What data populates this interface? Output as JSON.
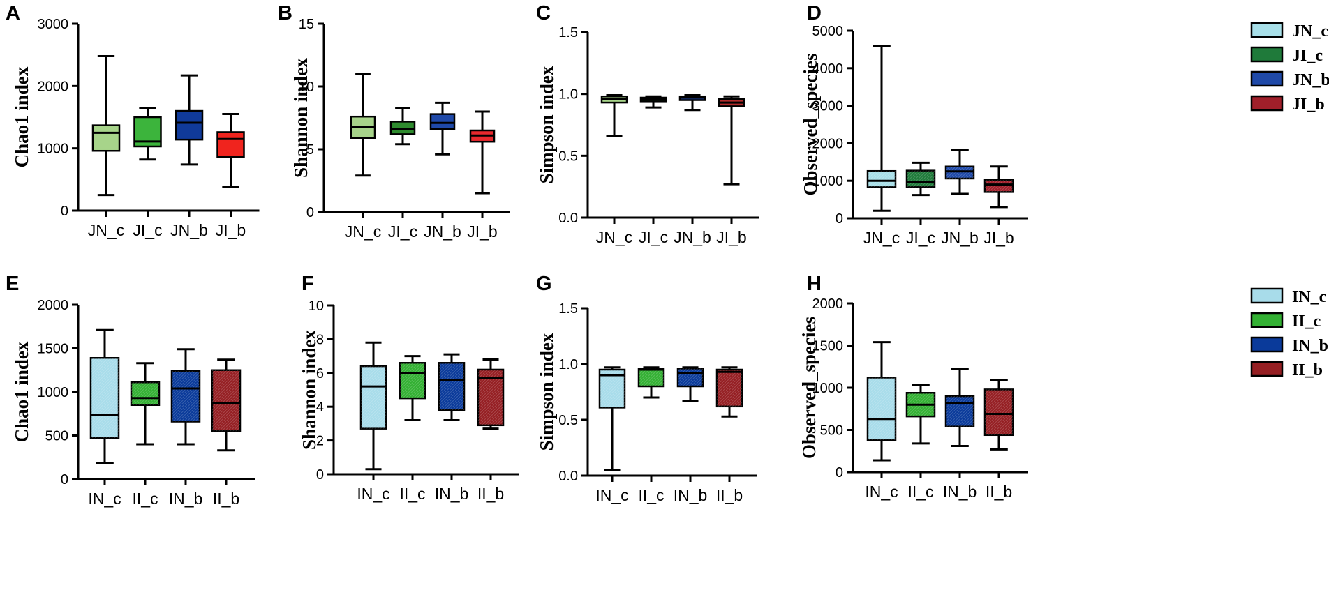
{
  "figure": {
    "palettes": {
      "row1_shannon": [
        "#a7d48a",
        "#2e8b2e",
        "#1f49a8",
        "#e8292e"
      ],
      "row1_simpson": [
        "#a7d48a",
        "#2e8b2e",
        "#1f49a8",
        "#b22b2b"
      ],
      "row1_observed": [
        "#a8dfe8",
        "#1f7a3a",
        "#1f49a8",
        "#a01f2a"
      ],
      "row1_chao1": [
        "#a7d48a",
        "#3cb43c",
        "#103a9a",
        "#f0241e"
      ],
      "row2": [
        "#a8dcea",
        "#33b033",
        "#0a3a9a",
        "#951f23"
      ]
    },
    "legends": [
      {
        "entries": [
          "JN_c",
          "JI_c",
          "JN_b",
          "JI_b"
        ],
        "colors": [
          "#a8dfe8",
          "#1f7a3a",
          "#1f49a8",
          "#a01f2a"
        ]
      },
      {
        "entries": [
          "IN_c",
          "II_c",
          "IN_b",
          "II_b"
        ],
        "colors": [
          "#a8dcea",
          "#33b033",
          "#0a3a9a",
          "#951f23"
        ]
      }
    ]
  },
  "chart_data": [
    {
      "panel": "A",
      "type": "box",
      "ylabel": "Chao1 index",
      "ylim": [
        0,
        3000
      ],
      "yticks": [
        0,
        1000,
        2000,
        3000
      ],
      "categories": [
        "JN_c",
        "JI_c",
        "JN_b",
        "JI_b"
      ],
      "palette": "row1_chao1",
      "hatch": false,
      "boxes": [
        {
          "min": 250,
          "q1": 960,
          "median": 1250,
          "q3": 1370,
          "max": 2480
        },
        {
          "min": 820,
          "q1": 1030,
          "median": 1110,
          "q3": 1500,
          "max": 1650
        },
        {
          "min": 740,
          "q1": 1140,
          "median": 1410,
          "q3": 1600,
          "max": 2170
        },
        {
          "min": 380,
          "q1": 860,
          "median": 1150,
          "q3": 1260,
          "max": 1550
        }
      ]
    },
    {
      "panel": "B",
      "type": "box",
      "ylabel": "Shannon index",
      "ylim": [
        0,
        15
      ],
      "yticks": [
        0,
        5,
        10,
        15
      ],
      "categories": [
        "JN_c",
        "JI_c",
        "JN_b",
        "JI_b"
      ],
      "palette": "row1_shannon",
      "hatch": false,
      "boxes": [
        {
          "min": 2.9,
          "q1": 5.9,
          "median": 6.8,
          "q3": 7.6,
          "max": 11.0
        },
        {
          "min": 5.4,
          "q1": 6.2,
          "median": 6.6,
          "q3": 7.2,
          "max": 8.3
        },
        {
          "min": 4.6,
          "q1": 6.6,
          "median": 7.1,
          "q3": 7.8,
          "max": 8.7
        },
        {
          "min": 1.5,
          "q1": 5.6,
          "median": 6.1,
          "q3": 6.5,
          "max": 8.0
        }
      ]
    },
    {
      "panel": "C",
      "type": "box",
      "ylabel": "Simpson index",
      "ylim": [
        0,
        1.5
      ],
      "yticks": [
        0.0,
        0.5,
        1.0,
        1.5
      ],
      "categories": [
        "JN_c",
        "JI_c",
        "JN_b",
        "JI_b"
      ],
      "palette": "row1_simpson",
      "hatch": false,
      "boxes": [
        {
          "min": 0.66,
          "q1": 0.93,
          "median": 0.96,
          "q3": 0.98,
          "max": 0.99
        },
        {
          "min": 0.89,
          "q1": 0.94,
          "median": 0.96,
          "q3": 0.97,
          "max": 0.98
        },
        {
          "min": 0.87,
          "q1": 0.95,
          "median": 0.97,
          "q3": 0.98,
          "max": 0.99
        },
        {
          "min": 0.27,
          "q1": 0.9,
          "median": 0.93,
          "q3": 0.96,
          "max": 0.98
        }
      ]
    },
    {
      "panel": "D",
      "type": "box",
      "ylabel": "Observed_species",
      "ylim": [
        0,
        5000
      ],
      "yticks": [
        0,
        1000,
        2000,
        3000,
        4000,
        5000
      ],
      "categories": [
        "JN_c",
        "JI_c",
        "JN_b",
        "JI_b"
      ],
      "palette": "row1_observed",
      "hatch": true,
      "boxes": [
        {
          "min": 200,
          "q1": 830,
          "median": 1000,
          "q3": 1260,
          "max": 4600
        },
        {
          "min": 620,
          "q1": 830,
          "median": 960,
          "q3": 1270,
          "max": 1480
        },
        {
          "min": 650,
          "q1": 1060,
          "median": 1250,
          "q3": 1380,
          "max": 1820
        },
        {
          "min": 300,
          "q1": 700,
          "median": 900,
          "q3": 1020,
          "max": 1380
        }
      ]
    },
    {
      "panel": "E",
      "type": "box",
      "ylabel": "Chao1 index",
      "ylim": [
        0,
        2000
      ],
      "yticks": [
        0,
        500,
        1000,
        1500,
        2000
      ],
      "categories": [
        "IN_c",
        "II_c",
        "IN_b",
        "II_b"
      ],
      "palette": "row2",
      "hatch": true,
      "boxes": [
        {
          "min": 180,
          "q1": 470,
          "median": 740,
          "q3": 1390,
          "max": 1710
        },
        {
          "min": 400,
          "q1": 850,
          "median": 930,
          "q3": 1110,
          "max": 1330
        },
        {
          "min": 400,
          "q1": 660,
          "median": 1040,
          "q3": 1240,
          "max": 1490
        },
        {
          "min": 330,
          "q1": 550,
          "median": 870,
          "q3": 1250,
          "max": 1370
        }
      ]
    },
    {
      "panel": "F",
      "type": "box",
      "ylabel": "Shannon index",
      "ylim": [
        0,
        10
      ],
      "yticks": [
        0,
        2,
        4,
        6,
        8,
        10
      ],
      "categories": [
        "IN_c",
        "II_c",
        "IN_b",
        "II_b"
      ],
      "palette": "row2",
      "hatch": true,
      "boxes": [
        {
          "min": 0.3,
          "q1": 2.7,
          "median": 5.2,
          "q3": 6.4,
          "max": 7.8
        },
        {
          "min": 3.2,
          "q1": 4.5,
          "median": 6.0,
          "q3": 6.6,
          "max": 7.0
        },
        {
          "min": 3.2,
          "q1": 3.8,
          "median": 5.6,
          "q3": 6.6,
          "max": 7.1
        },
        {
          "min": 2.7,
          "q1": 2.9,
          "median": 5.7,
          "q3": 6.2,
          "max": 6.8
        }
      ]
    },
    {
      "panel": "G",
      "type": "box",
      "ylabel": "Simpson index",
      "ylim": [
        0,
        1.5
      ],
      "yticks": [
        0.0,
        0.5,
        1.0,
        1.5
      ],
      "categories": [
        "IN_c",
        "II_c",
        "IN_b",
        "II_b"
      ],
      "palette": "row2",
      "hatch": true,
      "boxes": [
        {
          "min": 0.05,
          "q1": 0.61,
          "median": 0.9,
          "q3": 0.95,
          "max": 0.97
        },
        {
          "min": 0.7,
          "q1": 0.8,
          "median": 0.95,
          "q3": 0.96,
          "max": 0.97
        },
        {
          "min": 0.67,
          "q1": 0.8,
          "median": 0.92,
          "q3": 0.96,
          "max": 0.97
        },
        {
          "min": 0.53,
          "q1": 0.62,
          "median": 0.93,
          "q3": 0.95,
          "max": 0.97
        }
      ]
    },
    {
      "panel": "H",
      "type": "box",
      "ylabel": "Observed_species",
      "ylim": [
        0,
        2000
      ],
      "yticks": [
        0,
        500,
        1000,
        1500,
        2000
      ],
      "categories": [
        "IN_c",
        "II_c",
        "IN_b",
        "II_b"
      ],
      "palette": "row2",
      "hatch": true,
      "boxes": [
        {
          "min": 140,
          "q1": 380,
          "median": 630,
          "q3": 1120,
          "max": 1540
        },
        {
          "min": 340,
          "q1": 660,
          "median": 800,
          "q3": 940,
          "max": 1030
        },
        {
          "min": 310,
          "q1": 540,
          "median": 820,
          "q3": 900,
          "max": 1220
        },
        {
          "min": 270,
          "q1": 440,
          "median": 690,
          "q3": 980,
          "max": 1090
        }
      ]
    }
  ]
}
